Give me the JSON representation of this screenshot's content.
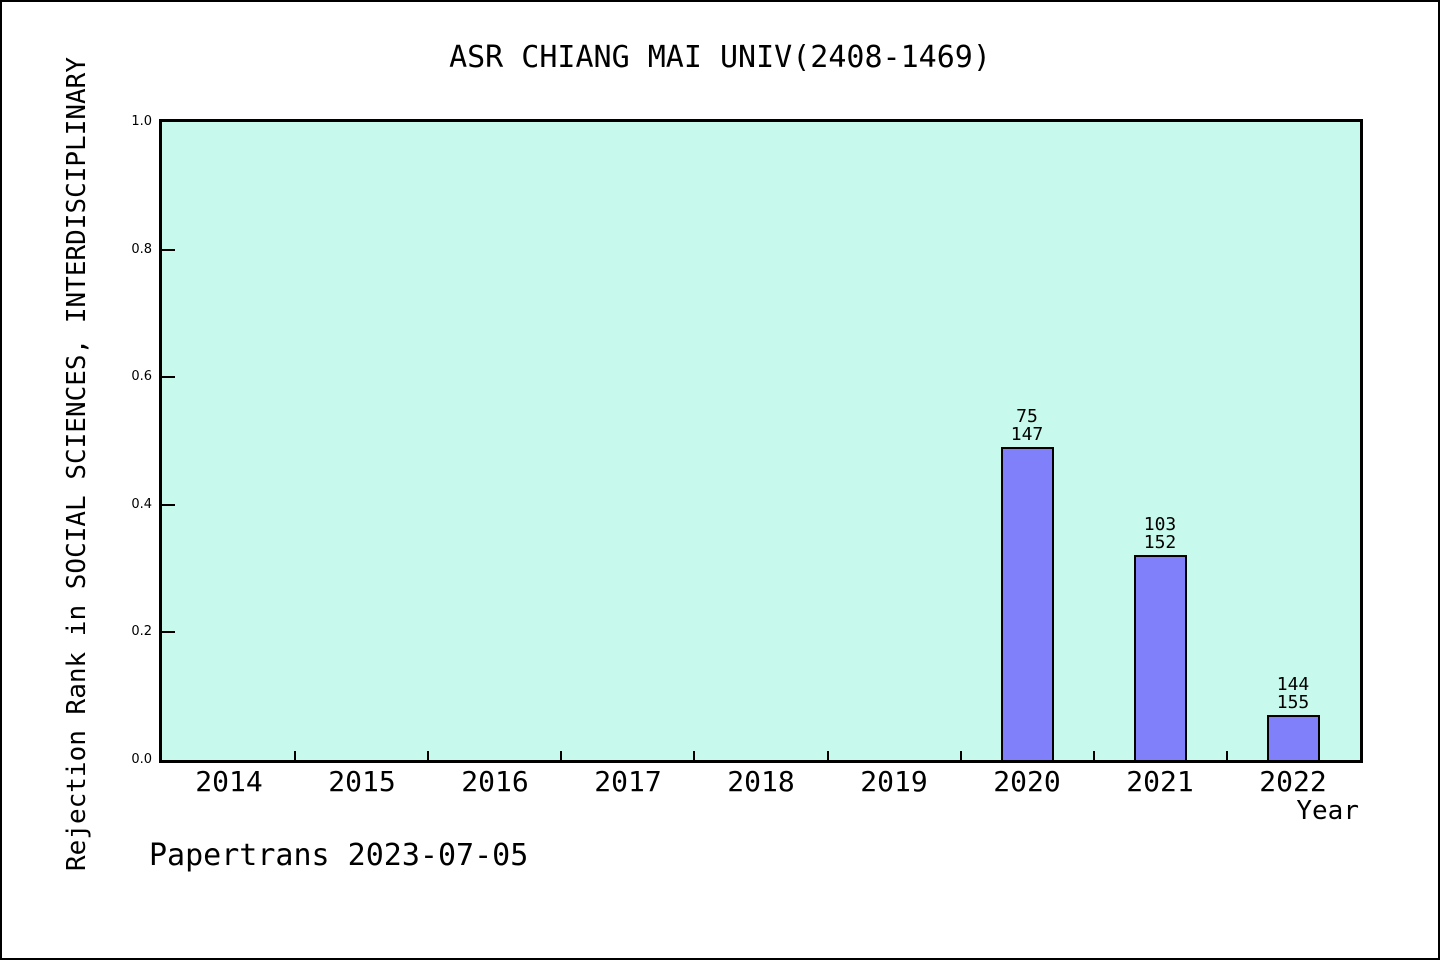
{
  "title": "ASR CHIANG MAI UNIV(2408-1469)",
  "footer": "Papertrans 2023-07-05",
  "colors": {
    "bar_fill": "#8080fa",
    "bar_border": "#000000",
    "plot_background": "#c7faec",
    "page_background": "#ffffff"
  },
  "chart_data": {
    "type": "bar",
    "title": "ASR CHIANG MAI UNIV(2408-1469)",
    "xlabel": "Year",
    "ylabel": "Rejection Rank in SOCIAL SCIENCES, INTERDISCIPLINARY",
    "categories": [
      "2014",
      "2015",
      "2016",
      "2017",
      "2018",
      "2019",
      "2020",
      "2021",
      "2022"
    ],
    "values": [
      null,
      null,
      null,
      null,
      null,
      null,
      0.49,
      0.322,
      0.071
    ],
    "bar_annotations": [
      null,
      null,
      null,
      null,
      null,
      null,
      [
        "75",
        "147"
      ],
      [
        "103",
        "152"
      ],
      [
        "144",
        "155"
      ]
    ],
    "ylim": [
      0,
      1
    ],
    "yticks": [
      0.0,
      0.2,
      0.4,
      0.6,
      0.8,
      1.0
    ],
    "ytick_labels": [
      "0.0",
      "0.2",
      "0.4",
      "0.6",
      "0.8",
      "1.0"
    ],
    "grid": false,
    "legend_position": "none",
    "bar_width_fraction": 0.4
  }
}
